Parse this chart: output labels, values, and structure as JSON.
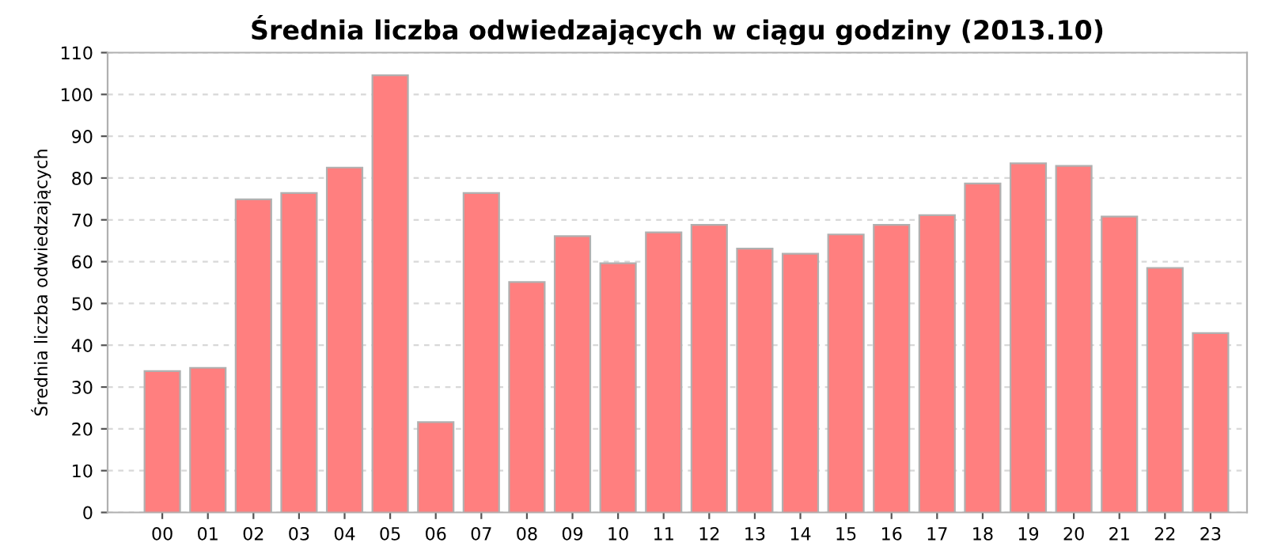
{
  "chart_data": {
    "type": "bar",
    "title": "Średnia liczba odwiedzających w ciągu godziny (2013.10)",
    "ylabel": "Średnia liczba odwiedzających",
    "categories": [
      "00",
      "01",
      "02",
      "03",
      "04",
      "05",
      "06",
      "07",
      "08",
      "09",
      "10",
      "11",
      "12",
      "13",
      "14",
      "15",
      "16",
      "17",
      "18",
      "19",
      "20",
      "21",
      "22",
      "23"
    ],
    "values": [
      33.8,
      34.6,
      74.9,
      76.4,
      82.5,
      104.6,
      21.6,
      76.4,
      55.1,
      66.1,
      59.6,
      67,
      68.8,
      63.1,
      61.9,
      66.5,
      68.8,
      71.1,
      78.7,
      83.5,
      82.9,
      70.8,
      58.5,
      42.9
    ],
    "color": "#ff7f7f",
    "ylim": [
      0,
      110
    ],
    "yticks": [
      0,
      10,
      20,
      30,
      40,
      50,
      60,
      70,
      80,
      90,
      100,
      110
    ],
    "grid": "y"
  }
}
